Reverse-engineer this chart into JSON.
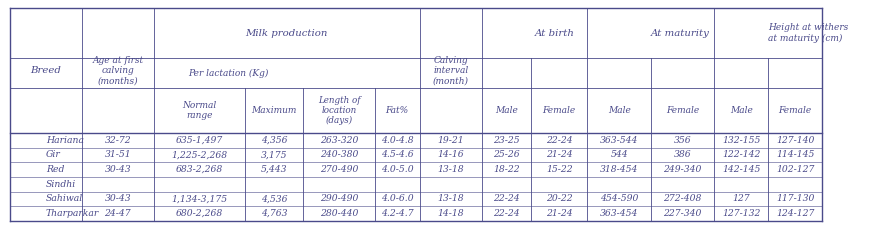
{
  "bg_color": "#ffffff",
  "text_color": "#4a4a8a",
  "line_color": "#4a4a8a",
  "data_rows": [
    [
      "Hariana",
      "32-72",
      "635-1,497",
      "4,356",
      "263-320",
      "4.0-4.8",
      "19-21",
      "23-25",
      "22-24",
      "363-544",
      "356",
      "132-155",
      "127-140"
    ],
    [
      "Gir",
      "31-51",
      "1,225-2,268",
      "3,175",
      "240-380",
      "4.5-4.6",
      "14-16",
      "25-26",
      "21-24",
      "544",
      "386",
      "122-142",
      "114-145"
    ],
    [
      "Red",
      "30-43",
      "683-2,268",
      "5,443",
      "270-490",
      "4.0-5.0",
      "13-18",
      "18-22",
      "15-22",
      "318-454",
      "249-340",
      "142-145",
      "102-127"
    ],
    [
      "Sindhi",
      "",
      "",
      "",
      "",
      "",
      "",
      "",
      "",
      "",
      "",
      "",
      ""
    ],
    [
      "Sahiwal",
      "30-43",
      "1,134-3,175",
      "4,536",
      "290-490",
      "4.0-6.0",
      "13-18",
      "22-24",
      "20-22",
      "454-590",
      "272-408",
      "127",
      "117-130"
    ],
    [
      "Tharparkar",
      "24-47",
      "680-2,268",
      "4,763",
      "280-440",
      "4.2-4.7",
      "14-18",
      "22-24",
      "21-24",
      "363-454",
      "227-340",
      "127-132",
      "124-127"
    ]
  ],
  "font_size": 7.0
}
